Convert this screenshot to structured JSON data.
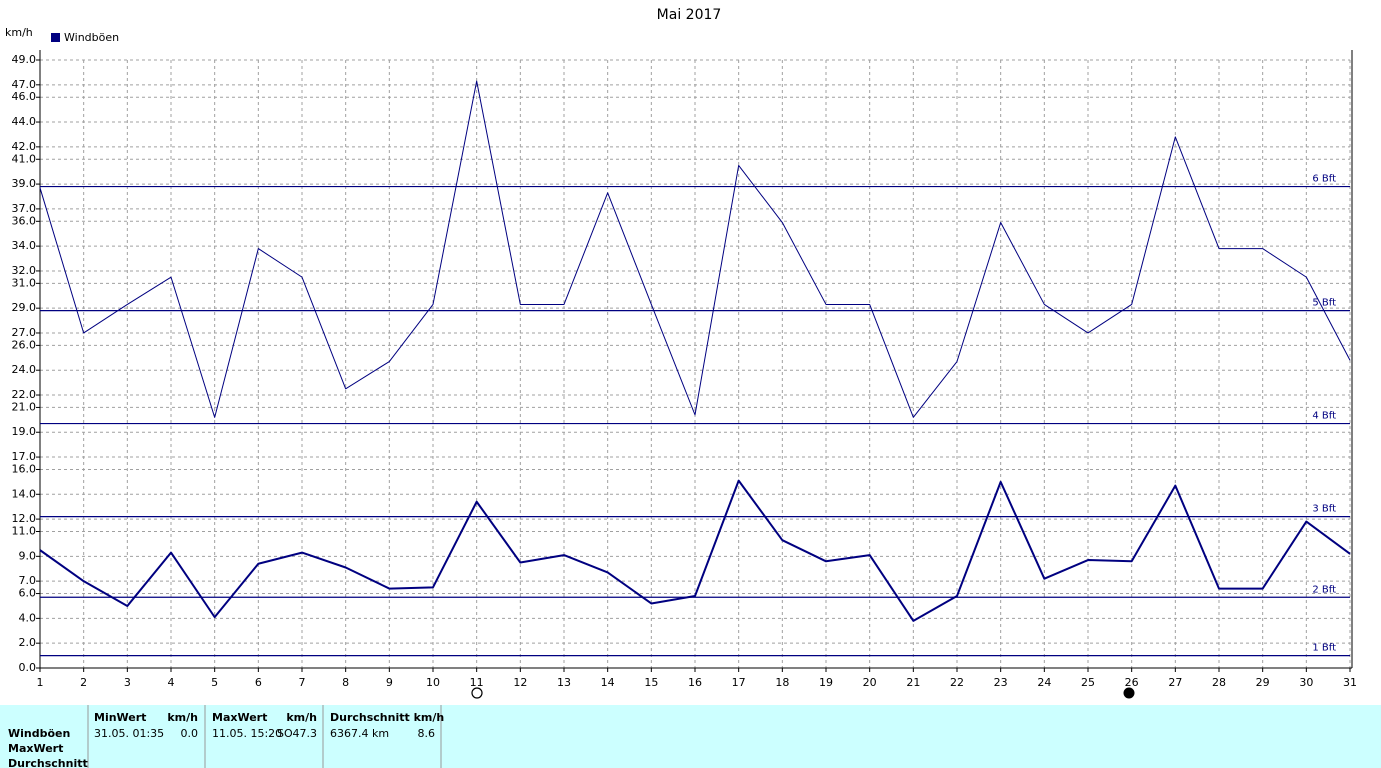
{
  "chart_data": {
    "type": "line",
    "title": "Mai 2017",
    "y_label": "km/h",
    "legend": "Windböen",
    "x": [
      1,
      2,
      3,
      4,
      5,
      6,
      7,
      8,
      9,
      10,
      11,
      12,
      13,
      14,
      15,
      16,
      17,
      18,
      19,
      20,
      21,
      22,
      23,
      24,
      25,
      26,
      27,
      28,
      29,
      30,
      31
    ],
    "xlim": [
      1,
      31
    ],
    "xticks": [
      1,
      2,
      3,
      4,
      5,
      6,
      7,
      8,
      9,
      10,
      11,
      12,
      13,
      14,
      15,
      16,
      17,
      18,
      19,
      20,
      21,
      22,
      23,
      24,
      25,
      26,
      27,
      28,
      29,
      30,
      31
    ],
    "ylim": [
      0,
      49
    ],
    "yticks": [
      {
        "value": 0,
        "label": "0.0"
      },
      {
        "value": 2,
        "label": "2.0"
      },
      {
        "value": 4,
        "label": "4.0"
      },
      {
        "value": 6,
        "label": "6.0"
      },
      {
        "value": 7,
        "label": "7.0"
      },
      {
        "value": 9,
        "label": "9.0"
      },
      {
        "value": 11,
        "label": "11.0"
      },
      {
        "value": 12,
        "label": "12.0"
      },
      {
        "value": 14,
        "label": "14.0"
      },
      {
        "value": 16,
        "label": "16.0"
      },
      {
        "value": 17,
        "label": "17.0"
      },
      {
        "value": 19,
        "label": "19.0"
      },
      {
        "value": 21,
        "label": "21.0"
      },
      {
        "value": 22,
        "label": "22.0"
      },
      {
        "value": 24,
        "label": "24.0"
      },
      {
        "value": 26,
        "label": "26.0"
      },
      {
        "value": 27,
        "label": "27.0"
      },
      {
        "value": 29,
        "label": "29.0"
      },
      {
        "value": 31,
        "label": "31.0"
      },
      {
        "value": 32,
        "label": "32.0"
      },
      {
        "value": 34,
        "label": "34.0"
      },
      {
        "value": 36,
        "label": "36.0"
      },
      {
        "value": 37,
        "label": "37.0"
      },
      {
        "value": 39,
        "label": "39.0"
      },
      {
        "value": 41,
        "label": "41.0"
      },
      {
        "value": 42,
        "label": "42.0"
      },
      {
        "value": 44,
        "label": "44.0"
      },
      {
        "value": 46,
        "label": "46.0"
      },
      {
        "value": 47,
        "label": "47.0"
      },
      {
        "value": 49,
        "label": "49.0"
      }
    ],
    "grid": true,
    "bft_lines": [
      {
        "value": 1,
        "label": "1 Bft"
      },
      {
        "value": 5.7,
        "label": "2 Bft"
      },
      {
        "value": 12.2,
        "label": "3 Bft"
      },
      {
        "value": 19.7,
        "label": "4 Bft"
      },
      {
        "value": 28.8,
        "label": "5 Bft"
      },
      {
        "value": 38.8,
        "label": "6 Bft"
      }
    ],
    "series": [
      {
        "color": "#000080",
        "width": 1,
        "values": [
          38.7,
          27.0,
          29.3,
          31.5,
          20.2,
          33.8,
          31.5,
          22.5,
          24.7,
          29.3,
          47.3,
          29.3,
          29.3,
          38.3,
          29.3,
          20.4,
          40.5,
          35.9,
          29.3,
          29.3,
          20.2,
          24.7,
          35.9,
          29.3,
          27.0,
          29.3,
          42.8,
          33.8,
          33.8,
          31.5,
          24.8
        ]
      },
      {
        "color": "#000080",
        "width": 2,
        "values": [
          9.5,
          7.0,
          5.0,
          9.3,
          4.1,
          8.4,
          9.3,
          8.1,
          6.4,
          6.5,
          13.4,
          8.5,
          9.1,
          7.7,
          5.2,
          5.8,
          15.1,
          10.3,
          8.6,
          9.1,
          3.8,
          5.8,
          15.0,
          7.2,
          8.7,
          8.6,
          14.7,
          6.4,
          6.4,
          11.8,
          9.2
        ]
      }
    ]
  },
  "stats": {
    "row_labels": [
      "Windböen",
      "MaxWert",
      "Durchschnitt"
    ],
    "min": {
      "header": "MinWert",
      "unit": "km/h",
      "date": "31.05.  01:35",
      "value": "0.0"
    },
    "max": {
      "header": "MaxWert",
      "unit": "km/h",
      "date": "11.05.  15:20",
      "dir": "SO",
      "value": "47.3"
    },
    "avg": {
      "header": "Durchschnitt km/h",
      "distance": "6367.4 km",
      "value": "8.6"
    }
  }
}
